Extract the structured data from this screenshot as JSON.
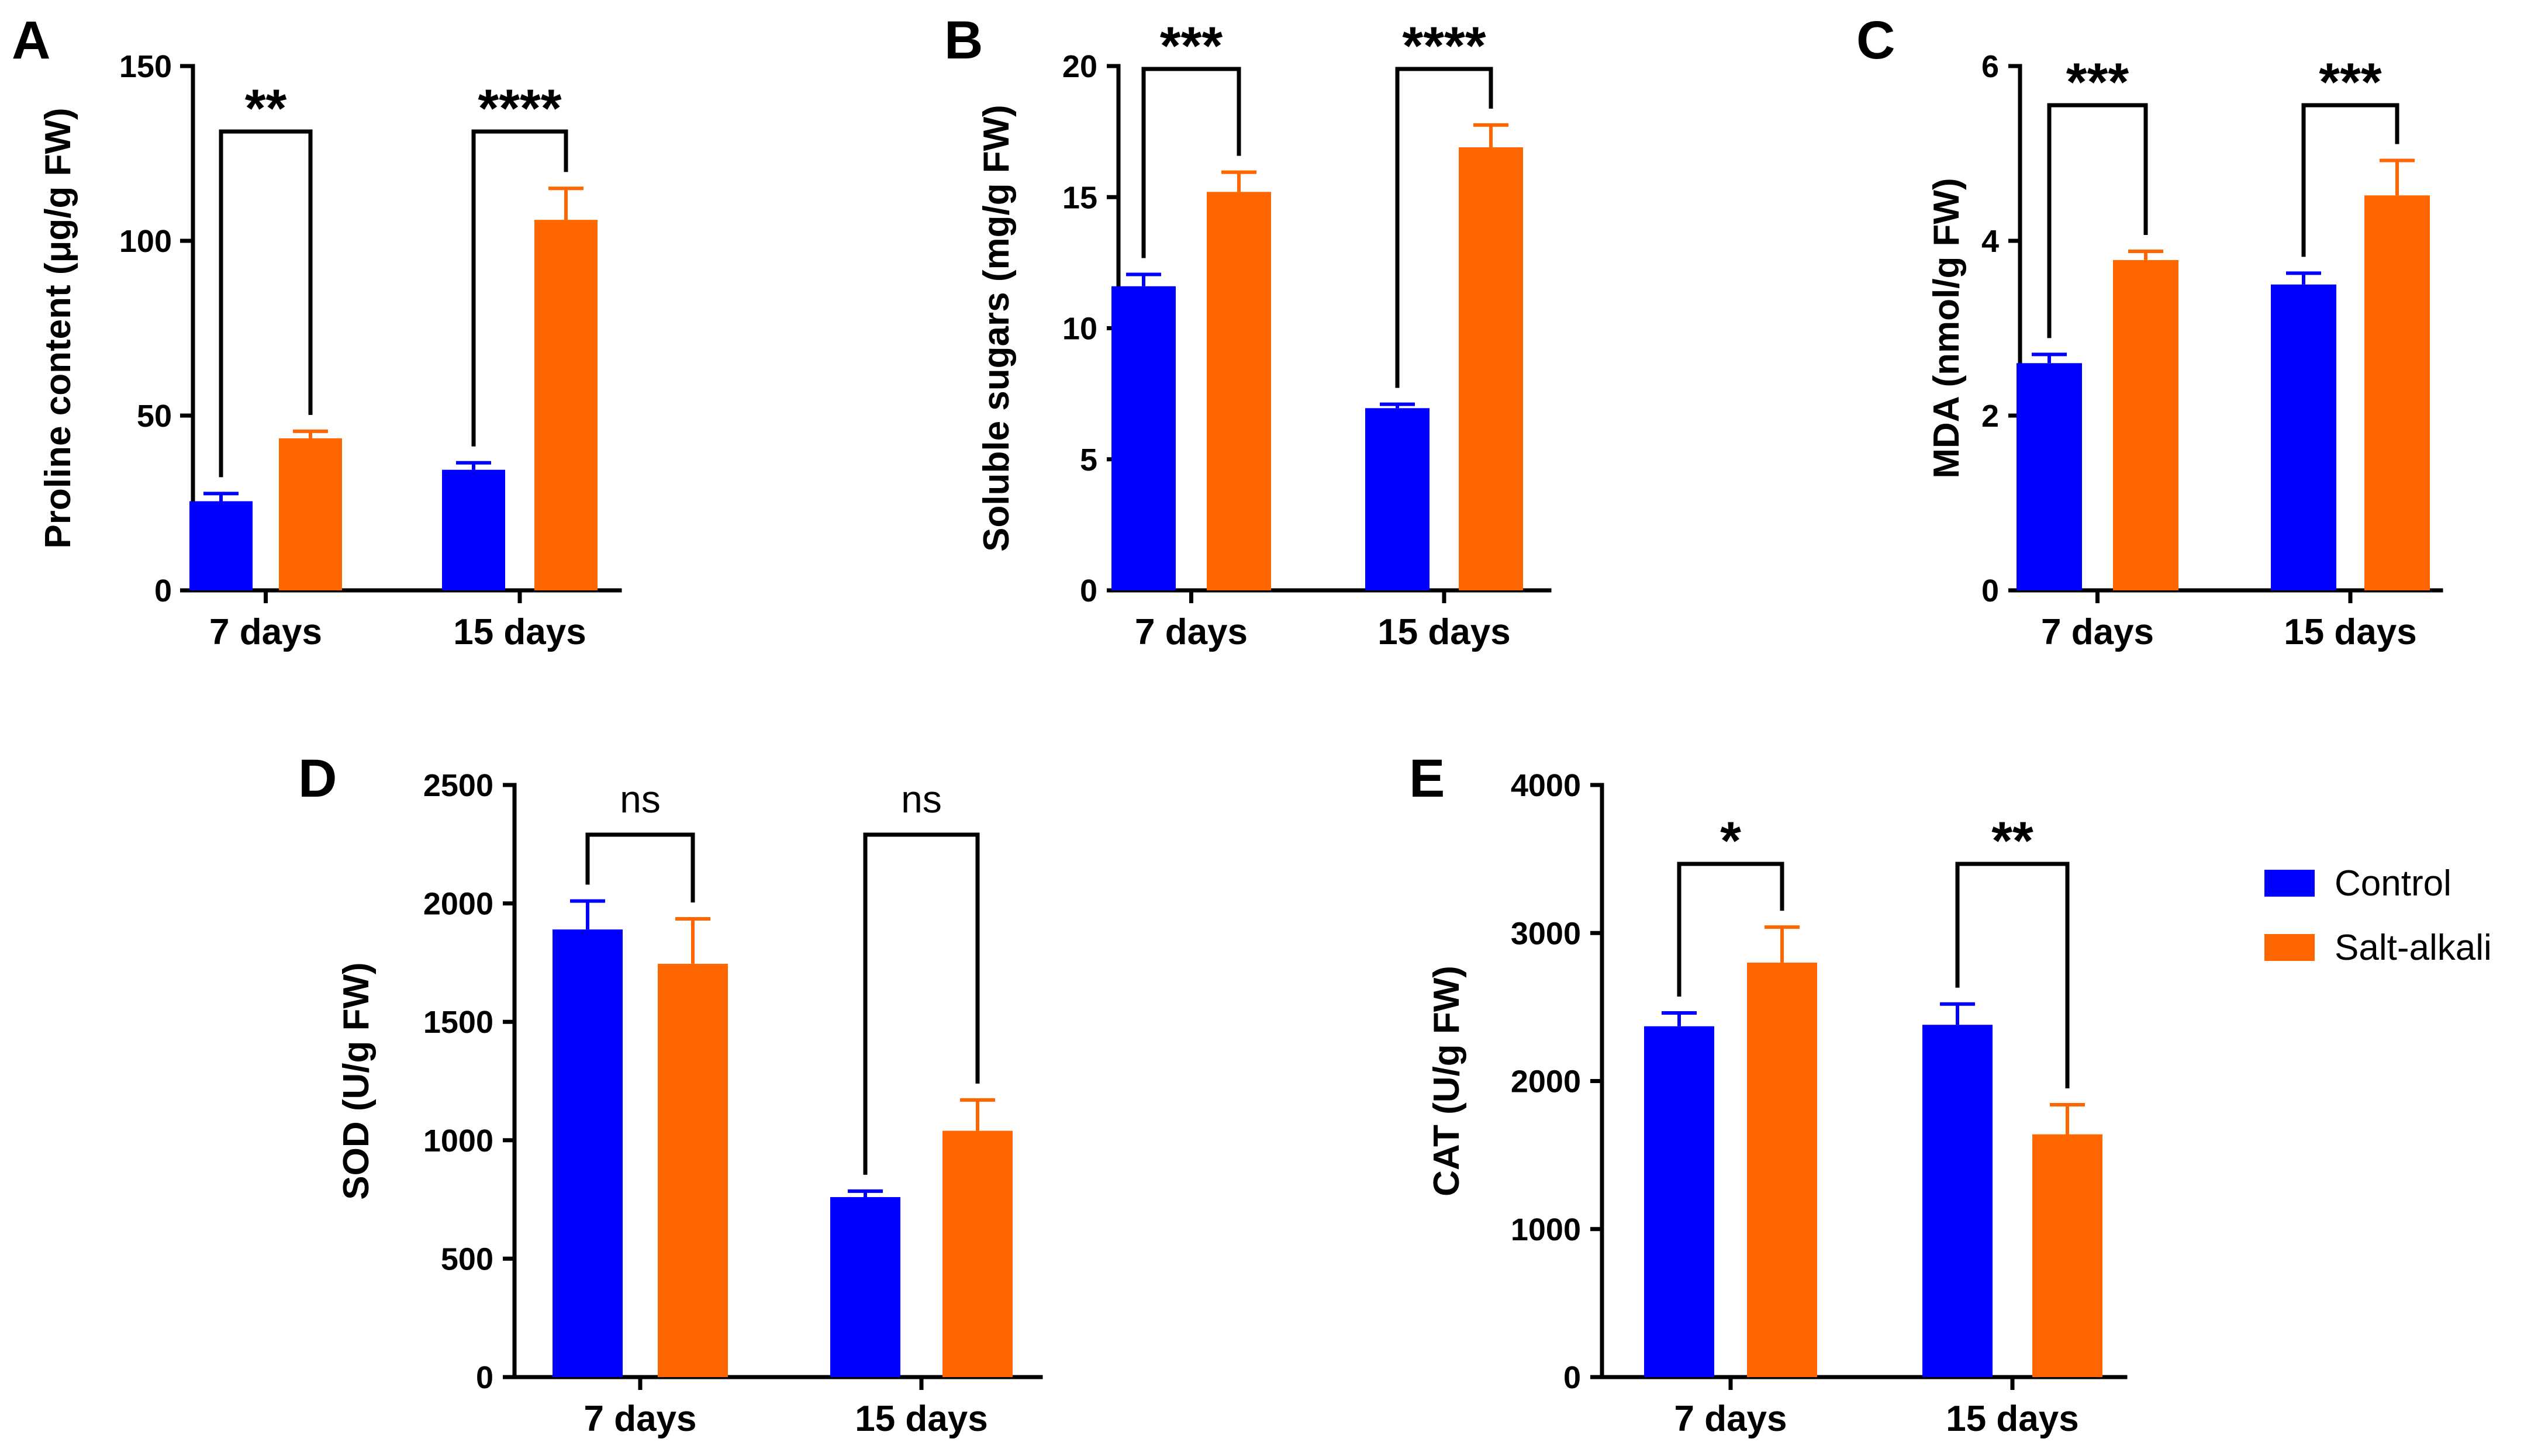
{
  "colors": {
    "control": "#0000FF",
    "salt": "#FF6600",
    "axis": "#000000"
  },
  "legend": [
    {
      "label": "Control",
      "color": "#0000FF"
    },
    {
      "label": "Salt-alkali",
      "color": "#FF6600"
    }
  ],
  "chart_data": [
    {
      "panel": "A",
      "type": "bar",
      "ylabel": "Proline content (μg/g FW)",
      "categories": [
        "7 days",
        "15 days"
      ],
      "ylim": [
        0,
        150
      ],
      "yticks": [
        0,
        50,
        100,
        150
      ],
      "series": [
        {
          "name": "Control",
          "values": [
            25.5,
            34.5
          ],
          "errors": [
            2.2,
            2.0
          ]
        },
        {
          "name": "Salt-alkali",
          "values": [
            43.5,
            106
          ],
          "errors": [
            2.0,
            9.0
          ]
        }
      ],
      "significance": [
        "**",
        "****"
      ]
    },
    {
      "panel": "B",
      "type": "bar",
      "ylabel": "Soluble sugars (mg/g FW)",
      "categories": [
        "7 days",
        "15 days"
      ],
      "ylim": [
        0,
        20
      ],
      "yticks": [
        0,
        5,
        10,
        15,
        20
      ],
      "series": [
        {
          "name": "Control",
          "values": [
            11.6,
            6.95
          ],
          "errors": [
            0.45,
            0.15
          ]
        },
        {
          "name": "Salt-alkali",
          "values": [
            15.2,
            16.9
          ],
          "errors": [
            0.75,
            0.85
          ]
        }
      ],
      "significance": [
        "***",
        "****"
      ]
    },
    {
      "panel": "C",
      "type": "bar",
      "ylabel": "MDA (nmol/g FW)",
      "categories": [
        "7 days",
        "15 days"
      ],
      "ylim": [
        0,
        6
      ],
      "yticks": [
        0,
        2,
        4,
        6
      ],
      "series": [
        {
          "name": "Control",
          "values": [
            2.6,
            3.5
          ],
          "errors": [
            0.1,
            0.13
          ]
        },
        {
          "name": "Salt-alkali",
          "values": [
            3.78,
            4.52
          ],
          "errors": [
            0.1,
            0.4
          ]
        }
      ],
      "significance": [
        "***",
        "***"
      ]
    },
    {
      "panel": "D",
      "type": "bar",
      "ylabel": "SOD (U/g FW)",
      "categories": [
        "7 days",
        "15 days"
      ],
      "ylim": [
        0,
        2500
      ],
      "yticks": [
        0,
        500,
        1000,
        1500,
        2000,
        2500
      ],
      "series": [
        {
          "name": "Control",
          "values": [
            1890,
            760
          ],
          "errors": [
            120,
            25
          ]
        },
        {
          "name": "Salt-alkali",
          "values": [
            1745,
            1040
          ],
          "errors": [
            190,
            130
          ]
        }
      ],
      "significance": [
        "ns",
        "ns"
      ]
    },
    {
      "panel": "E",
      "type": "bar",
      "ylabel": "CAT (U/g FW)",
      "categories": [
        "7 days",
        "15 days"
      ],
      "ylim": [
        0,
        4000
      ],
      "yticks": [
        0,
        1000,
        2000,
        3000,
        4000
      ],
      "series": [
        {
          "name": "Control",
          "values": [
            2370,
            2380
          ],
          "errors": [
            90,
            140
          ]
        },
        {
          "name": "Salt-alkali",
          "values": [
            2800,
            1640
          ],
          "errors": [
            240,
            200
          ]
        }
      ],
      "significance": [
        "*",
        "**"
      ]
    }
  ]
}
